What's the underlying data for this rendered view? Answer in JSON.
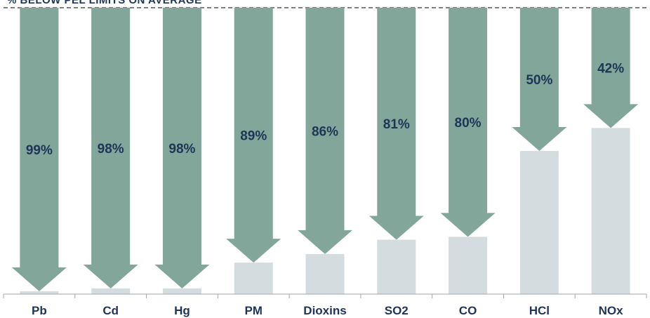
{
  "chart_data": {
    "type": "bar",
    "title": "% BELOW PEL LIMITS ON AVERAGE",
    "categories": [
      "Pb",
      "Cd",
      "Hg",
      "PM",
      "Dioxins",
      "SO2",
      "CO",
      "HCl",
      "NOx"
    ],
    "values": [
      99,
      98,
      98,
      89,
      86,
      81,
      80,
      50,
      42
    ],
    "value_labels": [
      "99%",
      "98%",
      "98%",
      "89%",
      "86%",
      "81%",
      "80%",
      "50%",
      "42%"
    ],
    "ylim": [
      0,
      100
    ],
    "grid": false,
    "legend": "none"
  },
  "colors": {
    "arrow": "#82a69a",
    "remaining_bar": "#d5dce0",
    "value_label": "#1f3557",
    "category_label": "#1f3557",
    "limit_line": "#808080",
    "baseline": "#a6a6a6"
  }
}
